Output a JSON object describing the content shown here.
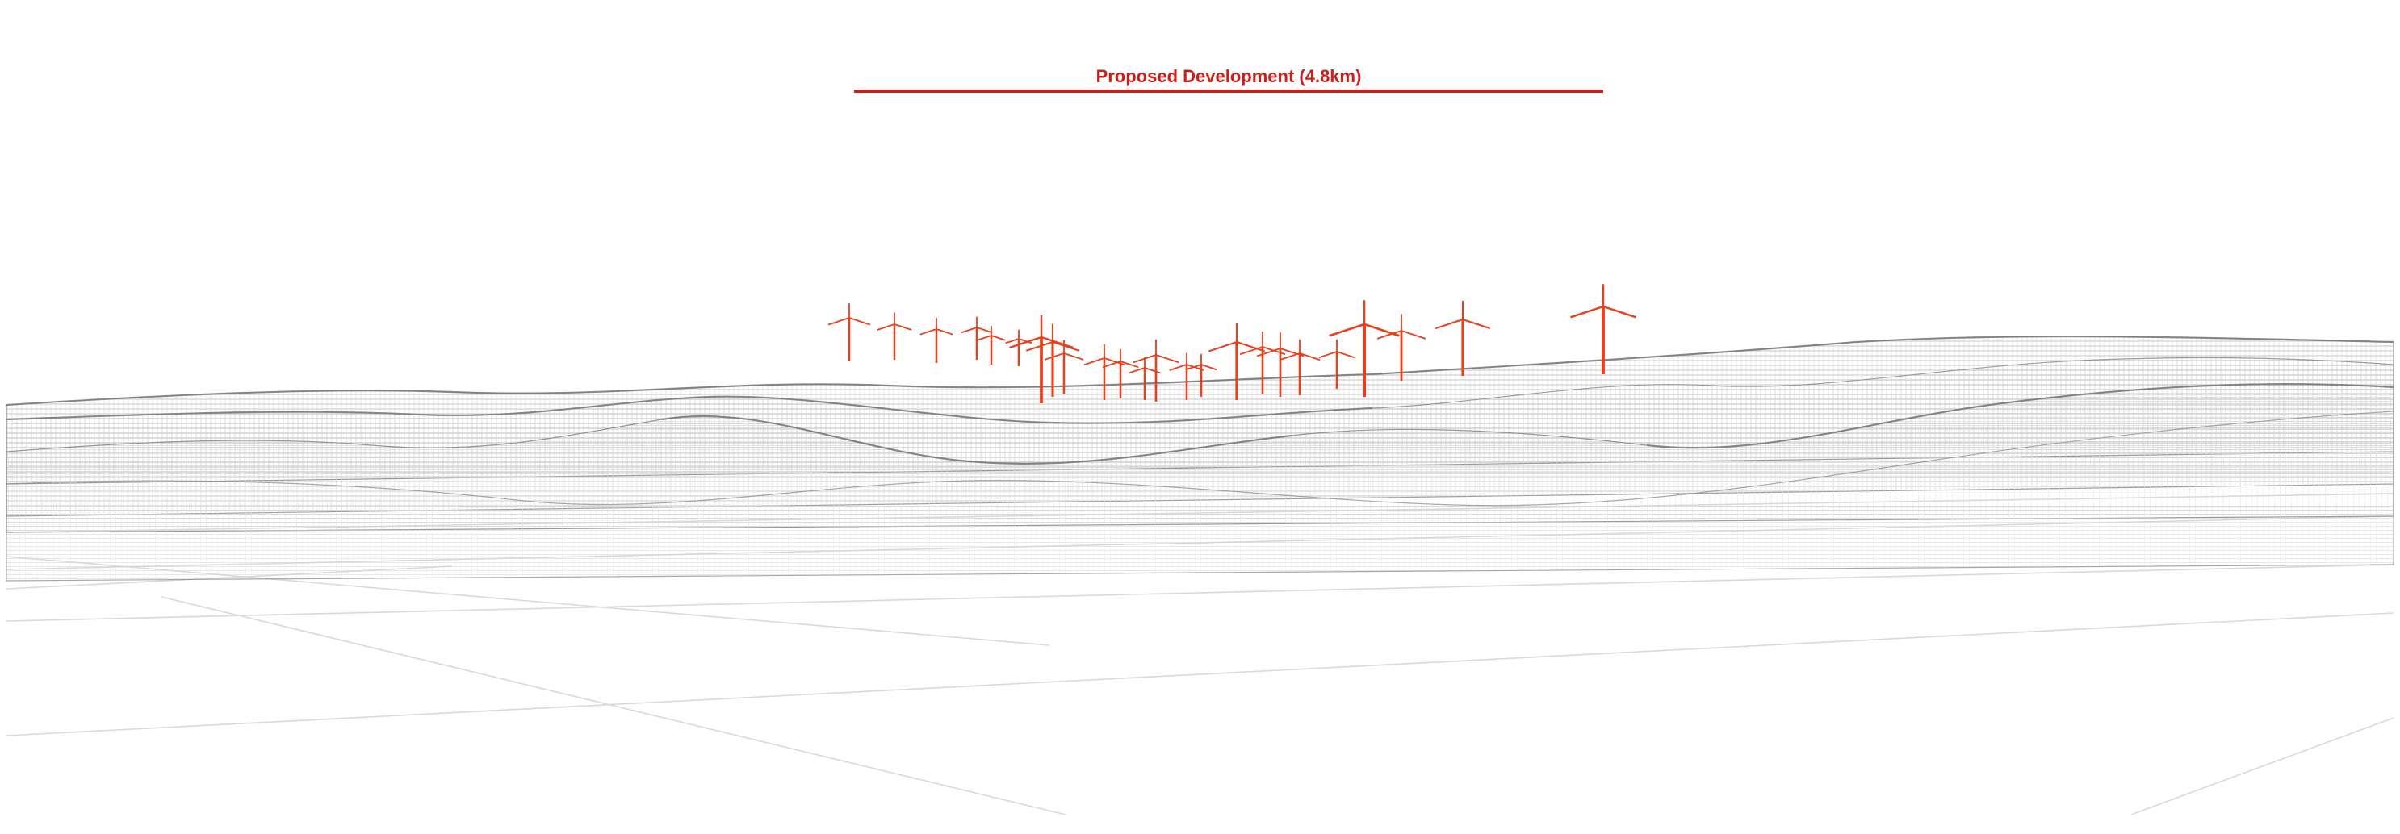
{
  "annotation": {
    "label": "Proposed Development (4.8km)",
    "color": "#cc1f1a"
  },
  "colors": {
    "turbine": "#e8401c",
    "terrain_line": "#8c8c8c",
    "terrain_light": "#c8c8c8",
    "ground_grid": "#d9d9d9"
  }
}
